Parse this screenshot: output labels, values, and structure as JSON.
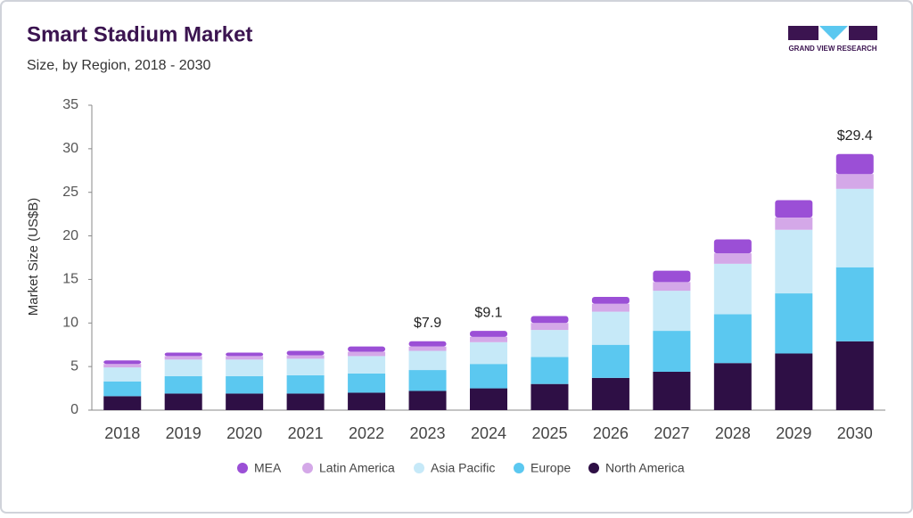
{
  "logo": "GRAND VIEW RESEARCH",
  "chart_data": {
    "type": "stacked-bar",
    "title": "Smart Stadium Market",
    "subtitle": "Size, by Region, 2018 - 2030",
    "y_label": "Market Size (US$B)",
    "categories": [
      "2018",
      "2019",
      "2020",
      "2021",
      "2022",
      "2023",
      "2024",
      "2025",
      "2026",
      "2027",
      "2028",
      "2029",
      "2030"
    ],
    "series": [
      {
        "name": "MEA",
        "color": "#9b4fd6",
        "values": [
          0.4,
          0.4,
          0.4,
          0.5,
          0.6,
          0.6,
          0.7,
          0.8,
          0.8,
          1.3,
          1.6,
          2.0,
          2.3
        ]
      },
      {
        "name": "Latin America",
        "color": "#d4a8e8",
        "values": [
          0.4,
          0.4,
          0.4,
          0.4,
          0.5,
          0.5,
          0.6,
          0.8,
          0.9,
          1.0,
          1.2,
          1.4,
          1.7
        ]
      },
      {
        "name": "Asia Pacific",
        "color": "#c6e9f8",
        "values": [
          1.6,
          1.9,
          1.9,
          1.9,
          2.0,
          2.2,
          2.5,
          3.1,
          3.8,
          4.6,
          5.8,
          7.3,
          9.0
        ]
      },
      {
        "name": "Europe",
        "color": "#5bc8f0",
        "values": [
          1.7,
          2.0,
          2.0,
          2.1,
          2.2,
          2.4,
          2.8,
          3.1,
          3.8,
          4.7,
          5.6,
          6.9,
          8.5
        ]
      },
      {
        "name": "North America",
        "color": "#2e0f45",
        "values": [
          1.6,
          1.9,
          1.9,
          1.9,
          2.0,
          2.2,
          2.5,
          3.0,
          3.7,
          4.4,
          5.4,
          6.5,
          7.9
        ]
      }
    ],
    "annotations": [
      {
        "category": "2023",
        "value": 7.9,
        "label": "$7.9"
      },
      {
        "category": "2024",
        "value": 9.1,
        "label": "$9.1"
      },
      {
        "category": "2030",
        "value": 29.4,
        "label": "$29.4"
      }
    ],
    "ylim": [
      0,
      35
    ],
    "yticks": [
      0,
      5,
      10,
      15,
      20,
      25,
      30,
      35
    ],
    "grid": false,
    "legend": "bottom"
  }
}
